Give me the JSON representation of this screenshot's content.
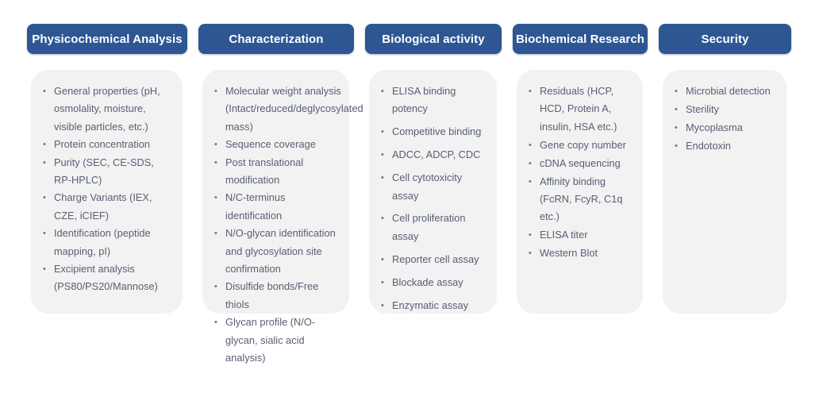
{
  "colors": {
    "header_bg": "#2e5693",
    "header_text": "#ffffff",
    "card_bg": "#f2f2f3",
    "body_text": "#576071",
    "page_bg": "#ffffff"
  },
  "columns": [
    {
      "title": "Physicochemical Analysis",
      "items": [
        "General properties (pH, osmolality, moisture, visible particles, etc.)",
        "Protein concentration",
        "Purity (SEC,  CE-SDS, RP-HPLC)",
        "Charge Variants (IEX, CZE, iCIEF)",
        "Identification (peptide mapping, pI)",
        "Excipient analysis (PS80/PS20/Mannose)"
      ]
    },
    {
      "title": "Characterization",
      "items": [
        "Molecular weight analysis (Intact/reduced/deglycosylated mass)",
        "Sequence coverage",
        "Post translational modification",
        "N/C-terminus identification",
        "N/O-glycan identification and glycosylation site confirmation",
        "Disulfide bonds/Free thiols",
        "Glycan profile (N/O-glycan, sialic acid analysis)"
      ]
    },
    {
      "title": "Biological activity",
      "items": [
        "ELISA binding potency",
        "Competitive binding",
        "ADCC, ADCP, CDC",
        "Cell cytotoxicity assay",
        "Cell proliferation assay",
        "Reporter cell assay",
        "Blockade assay",
        "Enzymatic assay"
      ]
    },
    {
      "title": "Biochemical Research",
      "items": [
        "Residuals (HCP, HCD, Protein A, insulin, HSA etc.)",
        "Gene copy number",
        "cDNA sequencing",
        "Affinity binding (FcRN, FcyR, C1q etc.)",
        "ELISA titer",
        "Western Blot"
      ]
    },
    {
      "title": "Security",
      "items": [
        "Microbial detection",
        "Sterility",
        "Mycoplasma",
        "Endotoxin"
      ]
    }
  ]
}
